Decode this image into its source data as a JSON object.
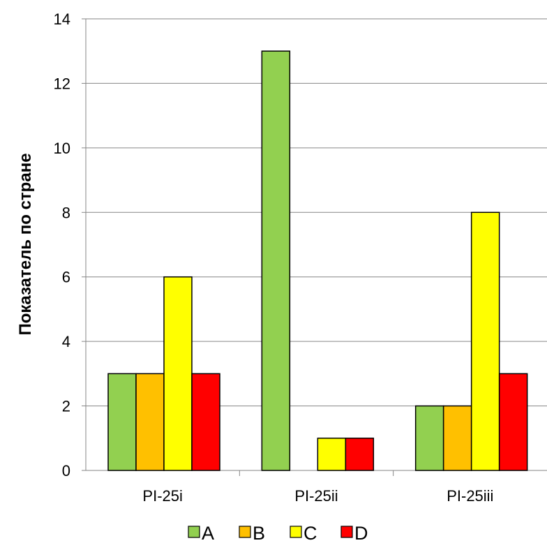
{
  "chart_data": {
    "type": "bar",
    "title": "",
    "xlabel": "",
    "ylabel": "Показатель по стране",
    "ylim": [
      0,
      14
    ],
    "ytick_step": 2,
    "yticks": [
      "0",
      "2",
      "4",
      "6",
      "8",
      "10",
      "12",
      "14"
    ],
    "grid": true,
    "legend_position": "bottom",
    "categories": [
      "PI-25i",
      "PI-25ii",
      "PI-25iii"
    ],
    "series": [
      {
        "name": "A",
        "color": "#92D050",
        "values": [
          3,
          13,
          2
        ]
      },
      {
        "name": "B",
        "color": "#FFC000",
        "values": [
          3,
          null,
          2
        ]
      },
      {
        "name": "C",
        "color": "#FFFF00",
        "values": [
          6,
          1,
          8
        ]
      },
      {
        "name": "D",
        "color": "#FF0000",
        "values": [
          3,
          1,
          3
        ]
      }
    ]
  }
}
